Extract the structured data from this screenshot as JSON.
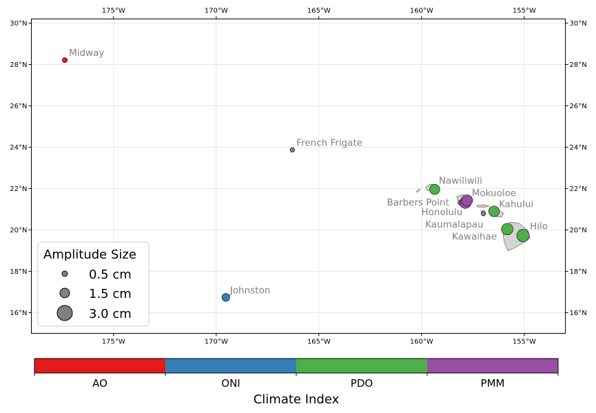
{
  "map": {
    "lon_ticks": [
      "175°W",
      "170°W",
      "165°W",
      "160°W",
      "155°W"
    ],
    "lat_ticks": [
      "16°N",
      "18°N",
      "20°N",
      "22°N",
      "24°N",
      "26°N",
      "28°N",
      "30°N"
    ],
    "lon_range": [
      -179,
      -153
    ],
    "lat_range": [
      15,
      30.2
    ],
    "gridlines": true
  },
  "chart_data": {
    "type": "scatter",
    "stations": [
      {
        "name": "Midway",
        "lon": -177.37,
        "lat": 28.21,
        "index": "AO",
        "amplitude_cm": 0.5
      },
      {
        "name": "French Frigate",
        "lon": -166.29,
        "lat": 23.87,
        "index": "none",
        "amplitude_cm": 0.4
      },
      {
        "name": "Johnston",
        "lon": -169.53,
        "lat": 16.74,
        "index": "ONI",
        "amplitude_cm": 1.2
      },
      {
        "name": "Nawiliwili",
        "lon": -159.36,
        "lat": 21.96,
        "index": "PDO",
        "amplitude_cm": 2.0
      },
      {
        "name": "Barbers Point",
        "lon": -158.12,
        "lat": 21.32,
        "index": "none",
        "amplitude_cm": 0.4
      },
      {
        "name": "Honolulu",
        "lon": -157.87,
        "lat": 21.31,
        "index": "PMM",
        "amplitude_cm": 2.4
      },
      {
        "name": "Mokuoloe",
        "lon": -157.79,
        "lat": 21.43,
        "index": "PMM",
        "amplitude_cm": 2.4
      },
      {
        "name": "Kaumalapau",
        "lon": -156.99,
        "lat": 20.79,
        "index": "none",
        "amplitude_cm": 0.4
      },
      {
        "name": "Kahului",
        "lon": -156.47,
        "lat": 20.9,
        "index": "PDO",
        "amplitude_cm": 2.2
      },
      {
        "name": "Kawaihae",
        "lon": -155.83,
        "lat": 20.04,
        "index": "PDO",
        "amplitude_cm": 2.6
      },
      {
        "name": "Hilo",
        "lon": -155.06,
        "lat": 19.73,
        "index": "PDO",
        "amplitude_cm": 3.0
      }
    ]
  },
  "legend": {
    "title": "Amplitude Size",
    "items": [
      {
        "label": "0.5 cm",
        "size_cm": 0.5
      },
      {
        "label": "1.5 cm",
        "size_cm": 1.5
      },
      {
        "label": "3.0 cm",
        "size_cm": 3.0
      }
    ]
  },
  "colorbar": {
    "title": "Climate Index",
    "categories": [
      {
        "label": "AO",
        "color": "#e41a1c"
      },
      {
        "label": "ONI",
        "color": "#377eb8"
      },
      {
        "label": "PDO",
        "color": "#4daf4a"
      },
      {
        "label": "PMM",
        "color": "#984ea3"
      }
    ]
  },
  "colors": {
    "none": "#808080",
    "land": "#d3d3d3"
  }
}
